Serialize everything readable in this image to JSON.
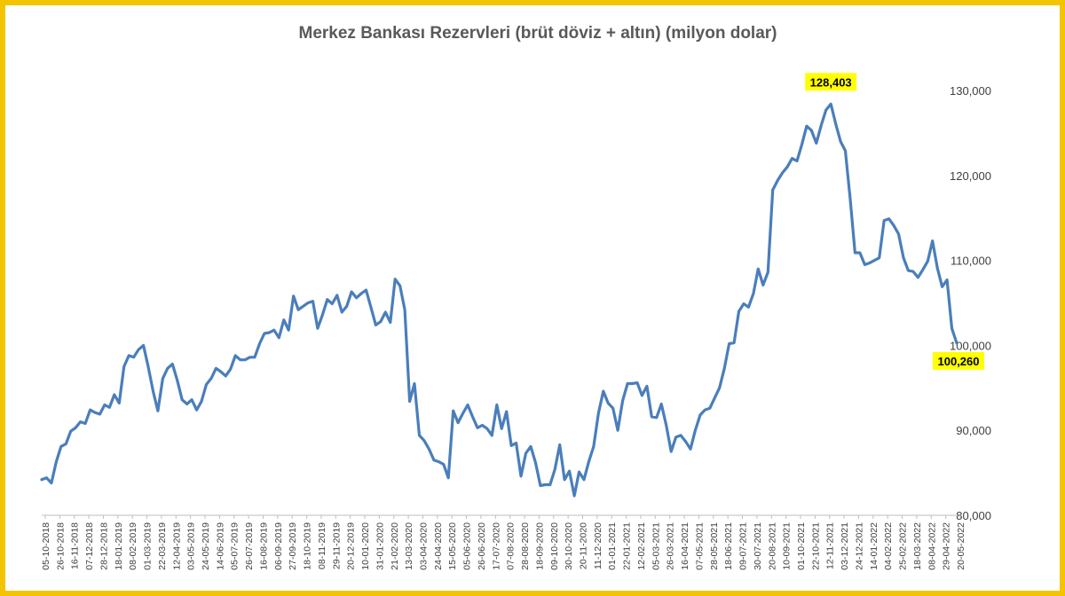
{
  "chart_data": {
    "type": "line",
    "title": "Merkez Bankası Rezervleri (brüt döviz + altın) (milyon dolar)",
    "xlabel": "",
    "ylabel": "",
    "ylim": [
      80000,
      130000
    ],
    "y_ticks": [
      "80,000",
      "90,000",
      "100,000",
      "110,000",
      "120,000",
      "130,000"
    ],
    "y_tick_values": [
      80000,
      90000,
      100000,
      110000,
      120000,
      130000
    ],
    "grid": false,
    "legend": "none",
    "line_color": "#4a7ebb",
    "x_tick_labels": [
      "05-10-2018",
      "26-10-2018",
      "16-11-2018",
      "07-12-2018",
      "28-12-2018",
      "18-01-2019",
      "08-02-2019",
      "01-03-2019",
      "22-03-2019",
      "12-04-2019",
      "03-05-2019",
      "24-05-2019",
      "14-06-2019",
      "05-07-2019",
      "26-07-2019",
      "16-08-2019",
      "06-09-2019",
      "27-09-2019",
      "18-10-2019",
      "08-11-2019",
      "29-11-2019",
      "20-12-2019",
      "10-01-2020",
      "31-01-2020",
      "21-02-2020",
      "13-03-2020",
      "03-04-2020",
      "24-04-2020",
      "15-05-2020",
      "05-06-2020",
      "26-06-2020",
      "17-07-2020",
      "07-08-2020",
      "28-08-2020",
      "18-09-2020",
      "09-10-2020",
      "30-10-2020",
      "20-11-2020",
      "11-12-2020",
      "01-01-2021",
      "22-01-2021",
      "12-02-2021",
      "05-03-2021",
      "26-03-2021",
      "16-04-2021",
      "07-05-2021",
      "28-05-2021",
      "18-06-2021",
      "09-07-2021",
      "30-07-2021",
      "20-08-2021",
      "10-09-2021",
      "01-10-2021",
      "22-10-2021",
      "12-11-2021",
      "03-12-2021",
      "24-12-2021",
      "14-01-2022",
      "04-02-2022",
      "25-02-2022",
      "18-03-2022",
      "08-04-2022",
      "29-04-2022",
      "20-05-2022"
    ],
    "series": [
      {
        "values": [
          84200,
          84400,
          83800,
          86300,
          88100,
          88400,
          89900,
          90300,
          91000,
          90800,
          92400,
          92100,
          91900,
          93000,
          92700,
          94200,
          93200,
          97500,
          98800,
          98600,
          99500,
          100000,
          97500,
          94600,
          92300,
          96100,
          97300,
          97800,
          95900,
          93600,
          93100,
          93600,
          92400,
          93400,
          95400,
          96100,
          97300,
          96900,
          96400,
          97200,
          98800,
          98300,
          98300,
          98600,
          98600,
          100200,
          101400,
          101500,
          101800,
          100900,
          103000,
          101800,
          105800,
          104200,
          104600,
          105000,
          105200,
          102000,
          103600,
          105400,
          104900,
          105900,
          103900,
          104600,
          106300,
          105600,
          106100,
          106500,
          104500,
          102400,
          102800,
          103900,
          102700,
          107800,
          107000,
          104200,
          93400,
          95500,
          89400,
          88800,
          87800,
          86500,
          86300,
          86000,
          84400,
          92300,
          90900,
          92000,
          93000,
          91600,
          90300,
          90600,
          90200,
          89400,
          93000,
          90200,
          92200,
          88200,
          88500,
          84600,
          87300,
          88100,
          86200,
          83500,
          83600,
          83600,
          85400,
          88300,
          84200,
          85200,
          82300,
          85100,
          84200,
          86300,
          88100,
          92000,
          94600,
          93200,
          92600,
          90000,
          93500,
          95500,
          95500,
          95600,
          94100,
          95200,
          91600,
          91500,
          93100,
          90600,
          87500,
          89200,
          89400,
          88700,
          87800,
          90000,
          91800,
          92400,
          92600,
          93800,
          95000,
          97300,
          100200,
          100300,
          104000,
          104900,
          104500,
          106100,
          109000,
          107100,
          108600,
          118300,
          119400,
          120300,
          121000,
          122000,
          121700,
          123600,
          125800,
          125300,
          123800,
          125900,
          127700,
          128403,
          126100,
          124000,
          122900,
          117200,
          110900,
          110900,
          109500,
          109700,
          110000,
          110300,
          114700,
          114900,
          114100,
          113100,
          110300,
          108800,
          108700,
          108000,
          108900,
          109900,
          112300,
          109100,
          106900,
          107700,
          102000,
          100260
        ]
      }
    ],
    "annotations": [
      {
        "text": "128,403",
        "value": 128403,
        "color": "#ffff00"
      },
      {
        "text": "100,260",
        "value": 100260,
        "color": "#ffff00"
      }
    ]
  }
}
